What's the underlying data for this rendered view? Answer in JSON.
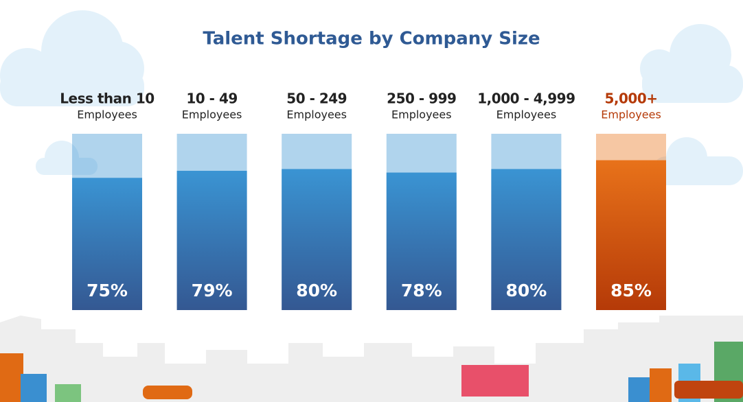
{
  "chart_data": {
    "type": "bar",
    "title": "Talent Shortage by Company Size",
    "categories": [
      "Less than 10",
      "10 - 49",
      "50 - 249",
      "250 - 999",
      "1,000 - 4,999",
      "5,000+"
    ],
    "category_sublabels": [
      "Employees",
      "Employees",
      "Employees",
      "Employees",
      "Employees",
      "Employees"
    ],
    "values": [
      75,
      79,
      80,
      78,
      80,
      85
    ],
    "value_labels": [
      "75%",
      "79%",
      "80%",
      "78%",
      "80%",
      "85%"
    ],
    "color": [
      "#3a94d3",
      "#345892"
    ],
    "highlight_color": [
      "#e8721a",
      "#b53a08"
    ],
    "highlight_index": 5,
    "ylim": [
      0,
      100
    ]
  }
}
